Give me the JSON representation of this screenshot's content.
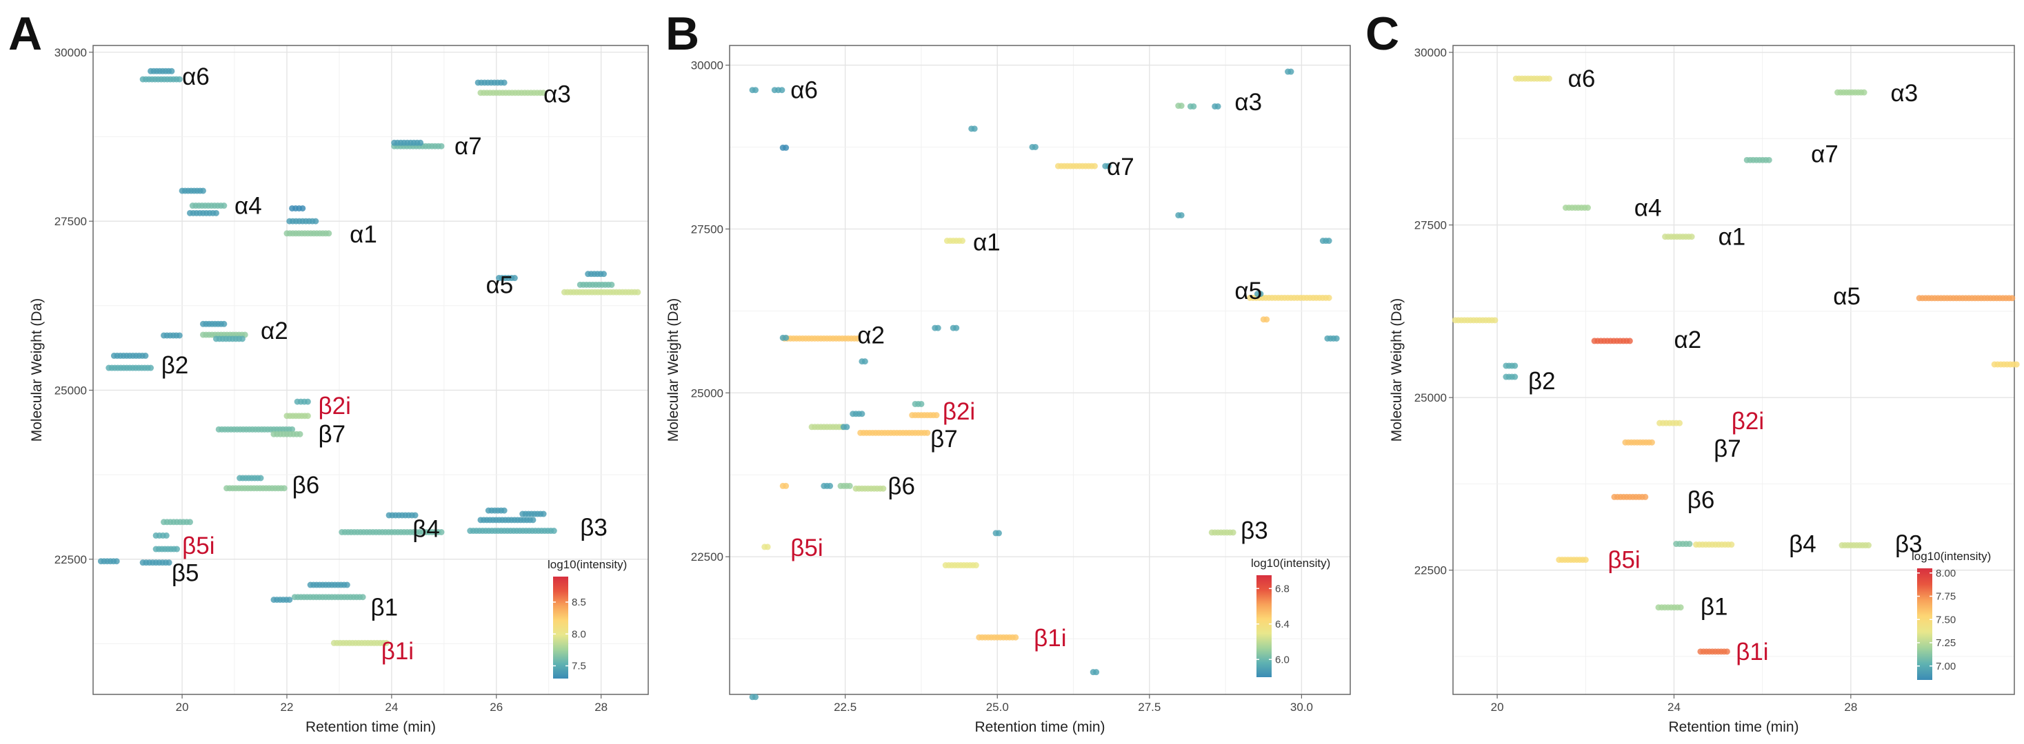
{
  "chart_data": [
    {
      "panel": "A",
      "type": "scatter",
      "xlabel": "Retention time (min)",
      "ylabel": "Molecular Weight (Da)",
      "xlim": [
        18.3,
        28.9
      ],
      "ylim": [
        20500,
        30100
      ],
      "xticks": [
        20,
        22,
        24,
        26,
        28
      ],
      "yticks": [
        22500,
        25000,
        27500,
        30000
      ],
      "grid": true,
      "legend": {
        "title": "log10(intensity)",
        "ticks": [
          "7.5",
          "8.0",
          "8.5"
        ],
        "position": "bottom-right"
      },
      "labels": [
        {
          "text": "α6",
          "x": 20.0,
          "y": 29640
        },
        {
          "text": "α3",
          "x": 26.9,
          "y": 29380
        },
        {
          "text": "α7",
          "x": 25.2,
          "y": 28610
        },
        {
          "text": "α4",
          "x": 21.0,
          "y": 27730
        },
        {
          "text": "α1",
          "x": 23.2,
          "y": 27310
        },
        {
          "text": "α5",
          "x": 25.8,
          "y": 26560
        },
        {
          "text": "α2",
          "x": 21.5,
          "y": 25880
        },
        {
          "text": "β2",
          "x": 19.6,
          "y": 25370
        },
        {
          "text": "β2i",
          "x": 22.6,
          "y": 24770,
          "red": true
        },
        {
          "text": "β7",
          "x": 22.6,
          "y": 24350
        },
        {
          "text": "β6",
          "x": 22.1,
          "y": 23600
        },
        {
          "text": "β4",
          "x": 24.4,
          "y": 22950
        },
        {
          "text": "β3",
          "x": 27.6,
          "y": 22970
        },
        {
          "text": "β5i",
          "x": 20.0,
          "y": 22700,
          "red": true
        },
        {
          "text": "β5",
          "x": 19.8,
          "y": 22300
        },
        {
          "text": "β1",
          "x": 23.6,
          "y": 21790
        },
        {
          "text": "β1i",
          "x": 23.8,
          "y": 21140,
          "red": true
        }
      ],
      "points": [
        [
          19.6,
          29600,
          7.5,
          0.7
        ],
        [
          19.6,
          29720,
          7.4,
          0.4
        ],
        [
          26.3,
          29400,
          7.8,
          1.2
        ],
        [
          25.9,
          29550,
          7.4,
          0.5
        ],
        [
          24.5,
          28610,
          7.6,
          0.9
        ],
        [
          24.3,
          28660,
          7.4,
          0.5
        ],
        [
          20.5,
          27730,
          7.6,
          0.6
        ],
        [
          20.4,
          27620,
          7.4,
          0.5
        ],
        [
          20.2,
          27950,
          7.4,
          0.4
        ],
        [
          22.4,
          27320,
          7.7,
          0.8
        ],
        [
          22.3,
          27500,
          7.4,
          0.5
        ],
        [
          22.2,
          27690,
          7.3,
          0.2
        ],
        [
          26.2,
          26660,
          7.4,
          0.3
        ],
        [
          28.0,
          26450,
          7.9,
          1.4
        ],
        [
          27.9,
          26560,
          7.6,
          0.6
        ],
        [
          27.9,
          26720,
          7.4,
          0.3
        ],
        [
          20.8,
          25820,
          7.7,
          0.8
        ],
        [
          20.6,
          25980,
          7.4,
          0.4
        ],
        [
          20.9,
          25760,
          7.5,
          0.5
        ],
        [
          19.8,
          25810,
          7.4,
          0.3
        ],
        [
          19.0,
          25330,
          7.5,
          0.8
        ],
        [
          19.0,
          25510,
          7.4,
          0.6
        ],
        [
          22.3,
          24830,
          7.5,
          0.2
        ],
        [
          22.2,
          24620,
          7.8,
          0.4
        ],
        [
          21.4,
          24420,
          7.6,
          1.4
        ],
        [
          22.0,
          24350,
          7.7,
          0.5
        ],
        [
          21.4,
          23550,
          7.7,
          1.1
        ],
        [
          21.3,
          23700,
          7.5,
          0.4
        ],
        [
          24.0,
          22900,
          7.6,
          1.9
        ],
        [
          24.2,
          23150,
          7.4,
          0.5
        ],
        [
          26.3,
          22920,
          7.5,
          1.6
        ],
        [
          26.2,
          23080,
          7.4,
          1.0
        ],
        [
          26.0,
          23220,
          7.4,
          0.3
        ],
        [
          26.7,
          23170,
          7.4,
          0.4
        ],
        [
          19.9,
          23050,
          7.6,
          0.5
        ],
        [
          19.6,
          22850,
          7.5,
          0.2
        ],
        [
          19.7,
          22650,
          7.5,
          0.4
        ],
        [
          18.6,
          22470,
          7.4,
          0.3
        ],
        [
          19.5,
          22450,
          7.4,
          0.5
        ],
        [
          22.8,
          21940,
          7.6,
          1.3
        ],
        [
          22.8,
          22120,
          7.4,
          0.7
        ],
        [
          21.9,
          21900,
          7.4,
          0.3
        ],
        [
          23.4,
          21260,
          7.9,
          1.0
        ]
      ]
    },
    {
      "panel": "B",
      "type": "scatter",
      "xlabel": "Retention time (min)",
      "ylabel": "Molecular Weight (Da)",
      "xlim": [
        20.6,
        30.8
      ],
      "ylim": [
        20400,
        30300
      ],
      "xticks": [
        22.5,
        25.0,
        27.5,
        30.0
      ],
      "xtick_labels": [
        "22.5",
        "25.0",
        "27.5",
        "30.0"
      ],
      "yticks": [
        22500,
        25000,
        27500,
        30000
      ],
      "grid": true,
      "legend": {
        "title": "log10(intensity)",
        "ticks": [
          "6.0",
          "6.4",
          "6.8"
        ],
        "position": "bottom-right"
      },
      "labels": [
        {
          "text": "α6",
          "x": 21.6,
          "y": 29620
        },
        {
          "text": "α3",
          "x": 28.9,
          "y": 29440
        },
        {
          "text": "α7",
          "x": 26.8,
          "y": 28450
        },
        {
          "text": "α1",
          "x": 24.6,
          "y": 27300
        },
        {
          "text": "α5",
          "x": 28.9,
          "y": 26560
        },
        {
          "text": "α2",
          "x": 22.7,
          "y": 25880
        },
        {
          "text": "β2i",
          "x": 24.1,
          "y": 24720,
          "red": true
        },
        {
          "text": "β7",
          "x": 23.9,
          "y": 24300
        },
        {
          "text": "β6",
          "x": 23.2,
          "y": 23580
        },
        {
          "text": "β5i",
          "x": 21.6,
          "y": 22640,
          "red": true
        },
        {
          "text": "β3",
          "x": 29.0,
          "y": 22900
        },
        {
          "text": "β1i",
          "x": 25.6,
          "y": 21260,
          "red": true
        }
      ],
      "points": [
        [
          21.0,
          29620,
          5.9,
          0.05
        ],
        [
          21.4,
          29620,
          5.9,
          0.12
        ],
        [
          21.5,
          28740,
          5.8,
          0.05
        ],
        [
          24.6,
          29030,
          5.9,
          0.05
        ],
        [
          29.8,
          29900,
          5.9,
          0.05
        ],
        [
          28.0,
          29380,
          6.1,
          0.05
        ],
        [
          28.2,
          29370,
          6.0,
          0.05
        ],
        [
          28.6,
          29370,
          5.9,
          0.05
        ],
        [
          26.3,
          28460,
          6.4,
          0.6
        ],
        [
          25.6,
          28750,
          5.9,
          0.05
        ],
        [
          26.8,
          28460,
          5.9,
          0.05
        ],
        [
          24.3,
          27320,
          6.3,
          0.25
        ],
        [
          28.0,
          27710,
          5.9,
          0.05
        ],
        [
          30.4,
          27320,
          5.9,
          0.1
        ],
        [
          29.8,
          26450,
          6.4,
          1.3
        ],
        [
          29.3,
          26510,
          5.9,
          0.05
        ],
        [
          29.4,
          26120,
          6.5,
          0.05
        ],
        [
          30.5,
          25830,
          5.9,
          0.15
        ],
        [
          22.1,
          25830,
          6.5,
          1.2
        ],
        [
          21.5,
          25840,
          5.9,
          0.05
        ],
        [
          22.8,
          25480,
          5.9,
          0.05
        ],
        [
          24.0,
          25990,
          5.9,
          0.05
        ],
        [
          24.3,
          25990,
          5.9,
          0.05
        ],
        [
          23.7,
          24830,
          6.0,
          0.1
        ],
        [
          23.8,
          24660,
          6.5,
          0.4
        ],
        [
          22.2,
          24480,
          6.2,
          0.5
        ],
        [
          22.7,
          24680,
          5.9,
          0.15
        ],
        [
          22.5,
          24480,
          5.9,
          0.05
        ],
        [
          23.3,
          24390,
          6.5,
          1.1
        ],
        [
          22.9,
          23540,
          6.2,
          0.45
        ],
        [
          22.2,
          23580,
          5.9,
          0.1
        ],
        [
          22.5,
          23580,
          6.1,
          0.15
        ],
        [
          21.5,
          23580,
          6.5,
          0.05
        ],
        [
          21.2,
          22650,
          6.3,
          0.05
        ],
        [
          25.0,
          22860,
          5.9,
          0.05
        ],
        [
          28.7,
          22870,
          6.2,
          0.35
        ],
        [
          24.4,
          22370,
          6.3,
          0.5
        ],
        [
          25.0,
          21270,
          6.5,
          0.6
        ],
        [
          26.6,
          20740,
          5.9,
          0.05
        ],
        [
          21.0,
          20360,
          5.9,
          0.05
        ]
      ]
    },
    {
      "panel": "C",
      "type": "scatter",
      "xlabel": "Retention time (min)",
      "ylabel": "Molecular Weight (Da)",
      "xlim": [
        19.0,
        31.7
      ],
      "ylim": [
        20700,
        30100
      ],
      "xticks": [
        20,
        24,
        28
      ],
      "yticks": [
        22500,
        25000,
        27500,
        30000
      ],
      "grid": true,
      "legend": {
        "title": "log10(intensity)",
        "ticks": [
          "7.00",
          "7.25",
          "7.50",
          "7.75",
          "8.00"
        ],
        "position": "bottom-right"
      },
      "labels": [
        {
          "text": "α6",
          "x": 21.6,
          "y": 29620
        },
        {
          "text": "α3",
          "x": 28.9,
          "y": 29410
        },
        {
          "text": "α7",
          "x": 27.1,
          "y": 28530
        },
        {
          "text": "α4",
          "x": 23.1,
          "y": 27750
        },
        {
          "text": "α1",
          "x": 25.0,
          "y": 27330
        },
        {
          "text": "α5",
          "x": 27.6,
          "y": 26470
        },
        {
          "text": "α2",
          "x": 24.0,
          "y": 25840
        },
        {
          "text": "β2",
          "x": 20.7,
          "y": 25240
        },
        {
          "text": "β2i",
          "x": 25.3,
          "y": 24660,
          "red": true
        },
        {
          "text": "β7",
          "x": 24.9,
          "y": 24260
        },
        {
          "text": "β6",
          "x": 24.3,
          "y": 23520
        },
        {
          "text": "β4",
          "x": 26.6,
          "y": 22880
        },
        {
          "text": "β3",
          "x": 29.0,
          "y": 22880
        },
        {
          "text": "β5i",
          "x": 22.5,
          "y": 22650,
          "red": true
        },
        {
          "text": "β1",
          "x": 24.6,
          "y": 21970
        },
        {
          "text": "β1i",
          "x": 25.4,
          "y": 21320,
          "red": true
        }
      ],
      "points": [
        [
          20.8,
          29620,
          7.4,
          0.75
        ],
        [
          28.0,
          29420,
          7.2,
          0.6
        ],
        [
          25.9,
          28440,
          7.1,
          0.5
        ],
        [
          21.8,
          27750,
          7.2,
          0.5
        ],
        [
          24.1,
          27330,
          7.3,
          0.6
        ],
        [
          30.6,
          26440,
          7.7,
          2.1
        ],
        [
          19.5,
          26120,
          7.4,
          0.9
        ],
        [
          22.6,
          25820,
          7.85,
          0.8
        ],
        [
          31.5,
          25480,
          7.5,
          0.5
        ],
        [
          20.3,
          25460,
          7.0,
          0.2
        ],
        [
          20.3,
          25300,
          7.0,
          0.2
        ],
        [
          23.9,
          24630,
          7.4,
          0.45
        ],
        [
          23.2,
          24350,
          7.6,
          0.6
        ],
        [
          23.0,
          23560,
          7.7,
          0.7
        ],
        [
          24.2,
          22880,
          7.1,
          0.3
        ],
        [
          24.9,
          22870,
          7.4,
          0.8
        ],
        [
          28.1,
          22860,
          7.3,
          0.6
        ],
        [
          21.7,
          22650,
          7.5,
          0.6
        ],
        [
          23.9,
          21960,
          7.2,
          0.5
        ],
        [
          24.9,
          21320,
          7.8,
          0.6
        ]
      ]
    }
  ],
  "colorscale": [
    "#3b8bb5",
    "#5fb2b1",
    "#a3d39b",
    "#e8e78c",
    "#fdd674",
    "#f8a159",
    "#e8563f",
    "#d7303f"
  ]
}
